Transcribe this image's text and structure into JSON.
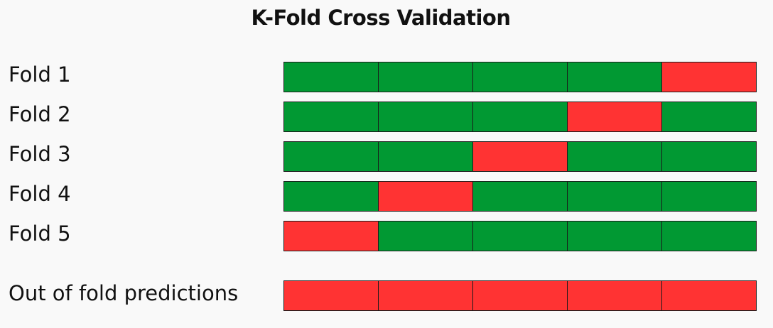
{
  "title": "K-Fold Cross Validation",
  "colors": {
    "train": "#019933",
    "validation": "#ff3333",
    "background": "#f9f9f9",
    "border": "#1a1a1a"
  },
  "rows": [
    {
      "label": "Fold 1",
      "cells": [
        "train",
        "train",
        "train",
        "train",
        "validation"
      ]
    },
    {
      "label": "Fold 2",
      "cells": [
        "train",
        "train",
        "train",
        "validation",
        "train"
      ]
    },
    {
      "label": "Fold 3",
      "cells": [
        "train",
        "train",
        "validation",
        "train",
        "train"
      ]
    },
    {
      "label": "Fold 4",
      "cells": [
        "train",
        "validation",
        "train",
        "train",
        "train"
      ]
    },
    {
      "label": "Fold 5",
      "cells": [
        "validation",
        "train",
        "train",
        "train",
        "train"
      ]
    },
    {
      "label": "Out of fold predictions",
      "cells": [
        "validation",
        "validation",
        "validation",
        "validation",
        "validation"
      ]
    }
  ]
}
